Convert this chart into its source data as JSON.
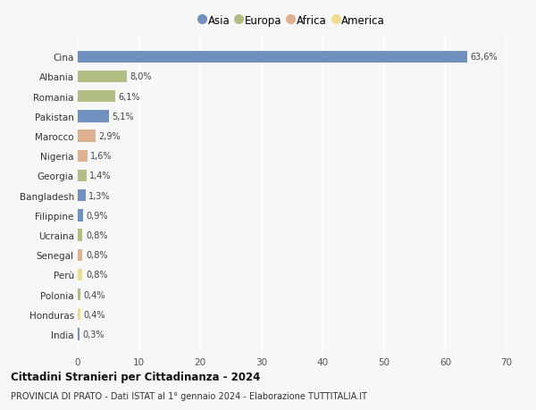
{
  "countries": [
    "Cina",
    "Albania",
    "Romania",
    "Pakistan",
    "Marocco",
    "Nigeria",
    "Georgia",
    "Bangladesh",
    "Filippine",
    "Ucraina",
    "Senegal",
    "Perù",
    "Polonia",
    "Honduras",
    "India"
  ],
  "values": [
    63.6,
    8.0,
    6.1,
    5.1,
    2.9,
    1.6,
    1.4,
    1.3,
    0.9,
    0.8,
    0.8,
    0.8,
    0.4,
    0.4,
    0.3
  ],
  "labels": [
    "63,6%",
    "8,0%",
    "6,1%",
    "5,1%",
    "2,9%",
    "1,6%",
    "1,4%",
    "1,3%",
    "0,9%",
    "0,8%",
    "0,8%",
    "0,8%",
    "0,4%",
    "0,4%",
    "0,3%"
  ],
  "continents": [
    "Asia",
    "Europa",
    "Europa",
    "Asia",
    "Africa",
    "Africa",
    "Europa",
    "Asia",
    "Asia",
    "Europa",
    "Africa",
    "America",
    "Europa",
    "America",
    "Asia"
  ],
  "continent_colors": {
    "Asia": "#7090c0",
    "Europa": "#b0be84",
    "Africa": "#e0b090",
    "America": "#eedc90"
  },
  "legend_order": [
    "Asia",
    "Europa",
    "Africa",
    "America"
  ],
  "title": "Cittadini Stranieri per Cittadinanza - 2024",
  "subtitle": "PROVINCIA DI PRATO - Dati ISTAT al 1° gennaio 2024 - Elaborazione TUTTITALIA.IT",
  "xlim": [
    0,
    70
  ],
  "xticks": [
    0,
    10,
    20,
    30,
    40,
    50,
    60,
    70
  ],
  "background_color": "#f7f7f7",
  "grid_color": "#ffffff",
  "bar_height": 0.6
}
